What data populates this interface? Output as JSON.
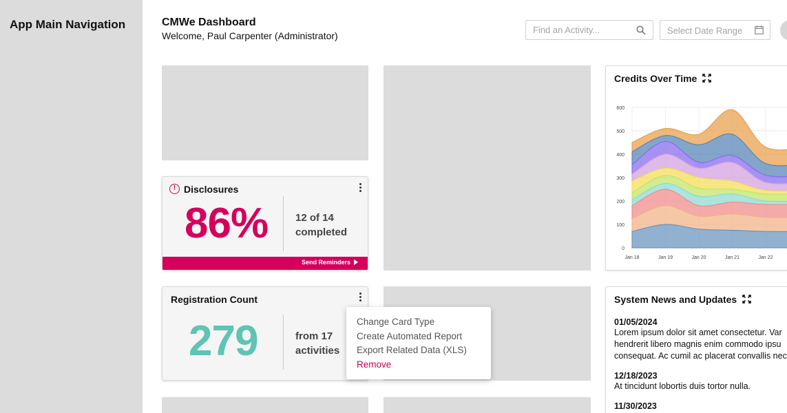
{
  "sidebar": {
    "title": "App Main Navigation"
  },
  "header": {
    "title": "CMWe Dashboard",
    "welcome": "Welcome, Paul Carpenter (Administrator)",
    "search_placeholder": "Find an Activity...",
    "date_placeholder": "Select Date Range",
    "search_icon": "search-icon",
    "calendar_icon": "calendar-icon"
  },
  "disclosures": {
    "title": "Disclosures",
    "percent": "86%",
    "line1": "12 of 14",
    "line2": "completed",
    "action": "Send Reminders",
    "accent": "#d4005c"
  },
  "registration": {
    "title": "Registration Count",
    "count": "279",
    "line1": "from 17",
    "line2": "activities",
    "accent": "#5ec4b4"
  },
  "card_menu": {
    "items": [
      "Change Card Type",
      "Create Automated Report",
      "Export Related Data (XLS)",
      "Remove"
    ]
  },
  "credits_chart": {
    "title": "Credits Over Time"
  },
  "chart_data": {
    "type": "area",
    "title": "Credits Over Time",
    "xlabel": "",
    "ylabel": "",
    "ylim": [
      0,
      600
    ],
    "yticks": [
      0,
      100,
      200,
      300,
      400,
      500,
      600
    ],
    "x": [
      "Jan 18",
      "Jan 19",
      "Jan 20",
      "Jan 21",
      "Jan 22"
    ],
    "grid": true,
    "series": [
      {
        "color": "#6e96c0",
        "values": [
          70,
          100,
          80,
          75,
          70
        ]
      },
      {
        "color": "#f3b48a",
        "values": [
          55,
          80,
          55,
          70,
          60
        ]
      },
      {
        "color": "#f28d8d",
        "values": [
          55,
          70,
          45,
          50,
          55
        ]
      },
      {
        "color": "#8fdcd2",
        "values": [
          25,
          25,
          40,
          35,
          15
        ]
      },
      {
        "color": "#c3e66a",
        "values": [
          30,
          35,
          35,
          20,
          30
        ]
      },
      {
        "color": "#f5de5a",
        "values": [
          50,
          30,
          45,
          35,
          15
        ]
      },
      {
        "color": "#d4a3e0",
        "values": [
          30,
          60,
          40,
          80,
          35
        ]
      },
      {
        "color": "#8a6ef0",
        "values": [
          40,
          55,
          25,
          30,
          30
        ]
      },
      {
        "color": "#5b87b8",
        "values": [
          55,
          25,
          75,
          90,
          50
        ]
      },
      {
        "color": "#e8a24e",
        "values": [
          40,
          30,
          45,
          105,
          70
        ]
      }
    ]
  },
  "news": {
    "title": "System News and Updates",
    "items": [
      {
        "date": "01/05/2024",
        "lines": [
          "Lorem ipsum dolor sit amet consectetur. Var",
          "hendrerit libero magnis enim commodo ipsu",
          "consequat. Ac cumil ac placerat convallis nec"
        ]
      },
      {
        "date": "12/18/2023",
        "lines": [
          "At tincidunt lobortis duis tortor nulla."
        ]
      },
      {
        "date": "11/30/2023",
        "lines": []
      }
    ]
  }
}
